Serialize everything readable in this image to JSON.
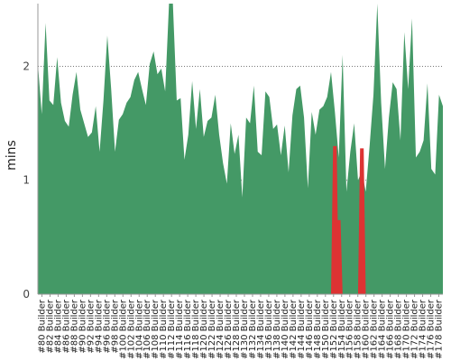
{
  "chart_data": {
    "type": "area",
    "title": "",
    "xlabel": "",
    "ylabel": "mins",
    "ylim": [
      0,
      2.55
    ],
    "yticks": [
      0,
      1,
      2
    ],
    "grid": "horizontal dotted at y-ticks",
    "x_tick_labels": [
      "#80 Builder",
      "#82 Builder",
      "#84 Builder",
      "#86 Builder",
      "#88 Builder",
      "#90 Builder",
      "#92 Builder",
      "#94 Builder",
      "#96 Builder",
      "#98 Builder",
      "#100 Builder",
      "#102 Builder",
      "#104 Builder",
      "#106 Builder",
      "#108 Builder",
      "#110 Builder",
      "#112 Builder",
      "#114 Builder",
      "#116 Builder",
      "#118 Builder",
      "#120 Builder",
      "#122 Builder",
      "#124 Builder",
      "#126 Builder",
      "#128 Builder",
      "#130 Builder",
      "#132 Builder",
      "#134 Builder",
      "#136 Builder",
      "#138 Builder",
      "#140 Builder",
      "#142 Builder",
      "#144 Builder",
      "#146 Builder",
      "#148 Builder",
      "#150 Builder",
      "#152 Builder",
      "#154 Builder",
      "#156 Builder",
      "#158 Builder",
      "#160 Builder",
      "#162 Builder",
      "#164 Builder",
      "#166 Builder",
      "#168 Builder",
      "#170 Builder",
      "#172 Builder",
      "#174 Builder",
      "#176 Builder",
      "#178 Builder"
    ],
    "x_start": 79,
    "x_end": 179,
    "colors": {
      "success": "#449966",
      "failure": "#dd3333",
      "grid": "#777777",
      "axis": "#999999"
    },
    "series": [
      {
        "values": [
          2.02,
          1.58,
          2.38,
          1.7,
          1.66,
          2.08,
          1.68,
          1.52,
          1.47,
          1.75,
          1.95,
          1.62,
          1.5,
          1.38,
          1.42,
          1.65,
          1.25,
          1.7,
          2.27,
          1.8,
          1.25,
          1.53,
          1.58,
          1.68,
          1.73,
          1.88,
          1.95,
          1.8,
          1.66,
          2.02,
          2.13,
          1.93,
          1.98,
          1.78,
          2.6,
          2.6,
          1.7,
          1.72,
          1.18,
          1.4,
          1.87,
          1.45,
          1.8,
          1.38,
          1.52,
          1.55,
          1.75,
          1.4,
          1.15,
          0.97,
          1.5,
          1.23,
          1.4,
          0.85,
          1.55,
          1.5,
          1.83,
          1.25,
          1.22,
          1.78,
          1.73,
          1.45,
          1.49,
          1.22,
          1.48,
          1.07,
          1.57,
          1.8,
          1.83,
          1.55,
          0.93,
          1.6,
          1.4,
          1.62,
          1.65,
          1.73,
          1.95,
          1.6,
          1.2,
          2.1,
          0.9,
          1.25,
          1.5,
          1.0,
          1.08,
          0.9,
          1.3,
          1.75,
          2.6,
          1.68,
          1.1,
          1.55,
          1.86,
          1.8,
          1.35,
          2.3,
          1.8,
          2.42,
          1.2,
          1.25,
          1.35
        ]
      },
      {
        "values": [
          0,
          0,
          0,
          0,
          0,
          0,
          0,
          0,
          0,
          0,
          0,
          0,
          0,
          0,
          0,
          0,
          0,
          0,
          0,
          0,
          0,
          0,
          0,
          0,
          0,
          0,
          0,
          0,
          0,
          0,
          0,
          0,
          0,
          0,
          0,
          0,
          0,
          0,
          0,
          0,
          0,
          0,
          0,
          0,
          0,
          0,
          0,
          0,
          0,
          0,
          0,
          0,
          0,
          0,
          0,
          0,
          0,
          0,
          0,
          0,
          0,
          0,
          0,
          0,
          0,
          0,
          0,
          0,
          0,
          0,
          0,
          0,
          0,
          0,
          0,
          0,
          0,
          1.3,
          0.65,
          0.0,
          0,
          0,
          0,
          0,
          1.28,
          0.0,
          0,
          0,
          0,
          0,
          0,
          0,
          0,
          0,
          0,
          0,
          0,
          0,
          0,
          0,
          0
        ]
      }
    ],
    "tail_values": [
      1.85,
      1.1,
      1.05,
      1.75,
      1.65
    ]
  }
}
